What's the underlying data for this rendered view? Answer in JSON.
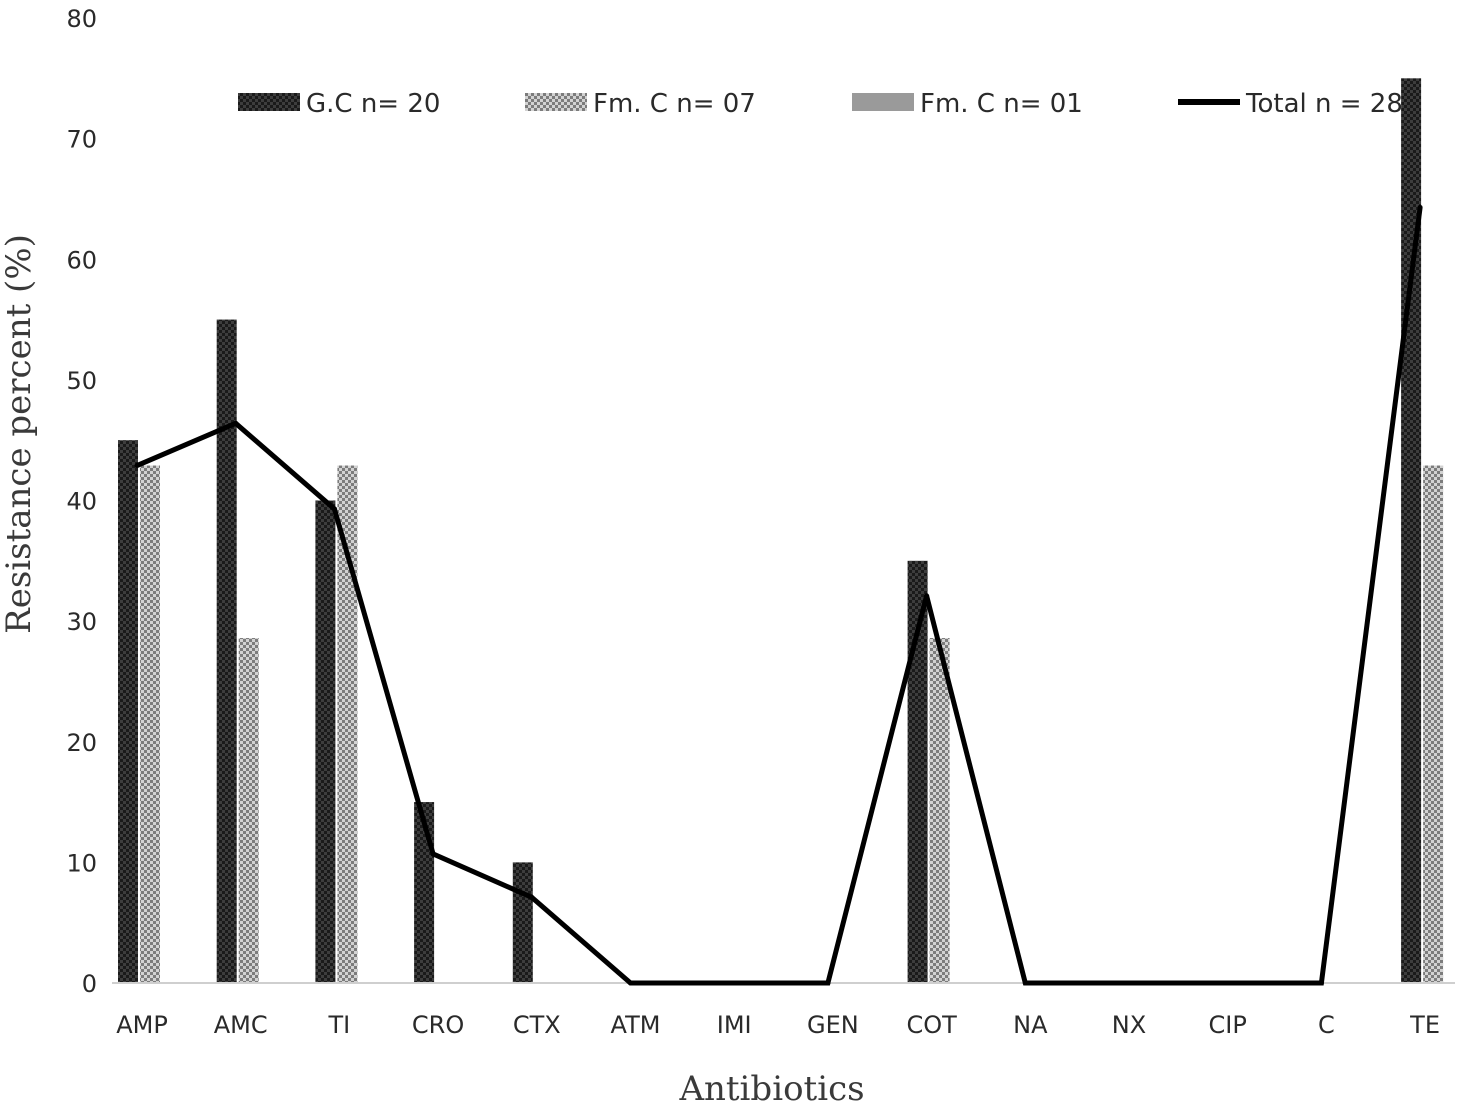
{
  "chart_data": {
    "type": "bar",
    "xlabel": "Antibiotics",
    "ylabel": "Resistance percent (%)",
    "ylim": [
      0,
      80
    ],
    "yticks": [
      0,
      10,
      20,
      30,
      40,
      50,
      60,
      70,
      80
    ],
    "grid": false,
    "legend_position": "top",
    "categories": [
      "AMP",
      "AMC",
      "TI",
      "CRO",
      "CTX",
      "ATM",
      "IMI",
      "GEN",
      "COT",
      "NA",
      "NX",
      "CIP",
      "C",
      "TE"
    ],
    "series": [
      {
        "name": "G.C n= 20",
        "kind": "bar",
        "color": "#1a1a1a",
        "pattern": "solid-dark",
        "values": [
          45,
          55,
          40,
          15,
          10,
          0,
          0,
          0,
          35,
          0,
          0,
          0,
          0,
          75
        ]
      },
      {
        "name": "Fm. C n= 07",
        "kind": "bar",
        "color": "#9a9a9a",
        "pattern": "checker",
        "values": [
          42.9,
          28.6,
          42.9,
          0,
          0,
          0,
          0,
          0,
          28.6,
          0,
          0,
          0,
          0,
          42.9
        ]
      },
      {
        "name": "Fm. C n= 01",
        "kind": "bar",
        "color": "#9a9a9a",
        "pattern": "solid-gray",
        "values": [
          0,
          0,
          0,
          0,
          0,
          0,
          0,
          0,
          0,
          0,
          0,
          0,
          0,
          0
        ]
      },
      {
        "name": "Total n = 28",
        "kind": "line",
        "color": "#000000",
        "values": [
          42.9,
          46.4,
          39.3,
          10.7,
          7.1,
          0,
          0,
          0,
          32.1,
          0,
          0,
          0,
          0,
          64.3
        ]
      }
    ]
  }
}
